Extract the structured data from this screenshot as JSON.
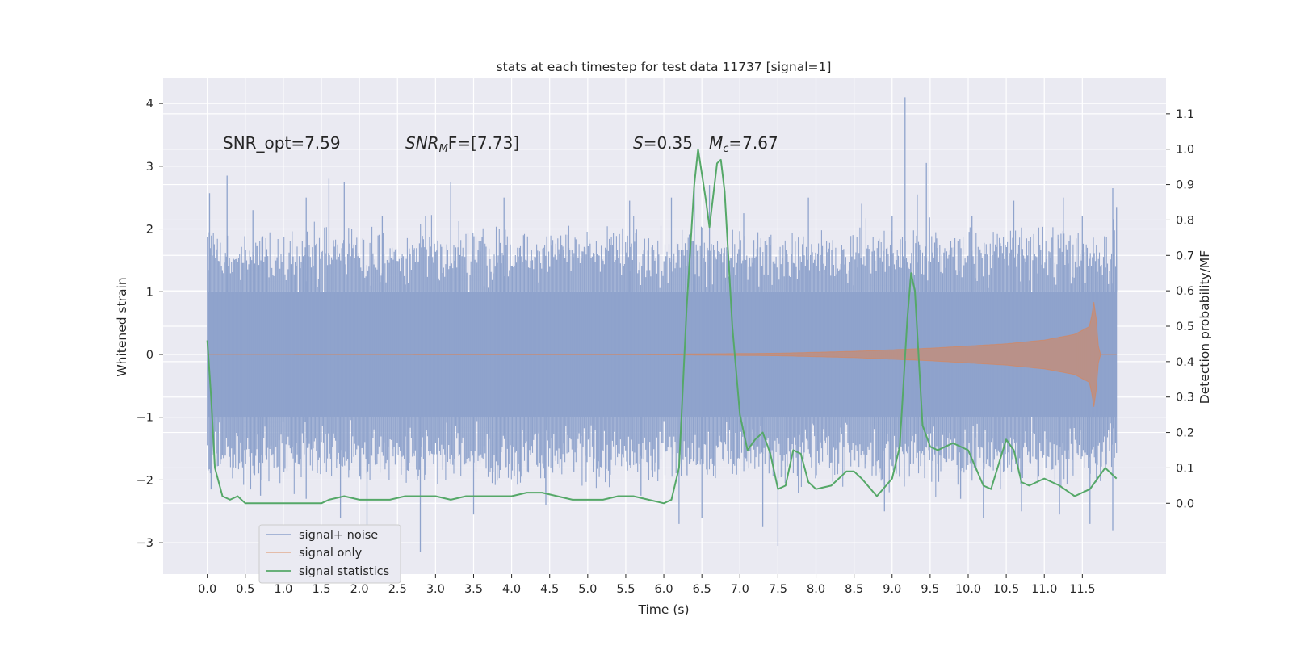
{
  "chart_data": {
    "type": "line",
    "title": "stats at each timestep for test data 11737 [signal=1]",
    "xlabel": "Time (s)",
    "ylabel": "Whitened strain",
    "ylabel_right": "Detection probability/MF",
    "xlim": [
      -0.58,
      12.6
    ],
    "ylim": [
      -3.5,
      4.4
    ],
    "ylim_right": [
      -0.2,
      1.2
    ],
    "grid": true,
    "x_ticks": [
      "0.0",
      "0.5",
      "1.0",
      "1.5",
      "2.0",
      "2.5",
      "3.0",
      "3.5",
      "4.0",
      "4.5",
      "5.0",
      "5.5",
      "6.0",
      "6.5",
      "7.0",
      "7.5",
      "8.0",
      "8.5",
      "9.0",
      "9.5",
      "10.0",
      "10.5",
      "11.0",
      "11.5"
    ],
    "y_ticks": [
      "−3",
      "−2",
      "−1",
      "0",
      "1",
      "2",
      "3",
      "4"
    ],
    "y_ticks_right": [
      "0.0",
      "0.1",
      "0.2",
      "0.3",
      "0.4",
      "0.5",
      "0.6",
      "0.7",
      "0.8",
      "0.9",
      "1.0",
      "1.1"
    ],
    "annotations": [
      {
        "text": "SNR_opt=7.59",
        "x": 0.2,
        "y": 3.35
      },
      {
        "text": "SNR_MF=[7.73]",
        "x": 2.6,
        "y": 3.35
      },
      {
        "text": "S=0.35   M_c=7.67",
        "x": 5.6,
        "y": 3.35
      }
    ],
    "annotation_parts": {
      "snr_opt": "SNR_opt=7.59",
      "snr_mf_main": "SNR",
      "snr_mf_sub": "M",
      "snr_mf_rest": "F=[7.73]",
      "s_main": "S",
      "s_rest": "=0.35",
      "mc_main": "M",
      "mc_sub": "c",
      "mc_rest": "=7.67"
    },
    "legend_position": "lower-left",
    "series": [
      {
        "name": "signal+ noise",
        "color": "#8fa3cc",
        "axis": "left",
        "x_range": [
          0.0,
          11.95
        ],
        "envelope": {
          "core": 1.0,
          "typical_upper": 1.6,
          "typical_lower": -1.6
        },
        "peaks": [
          [
            0.03,
            2.57
          ],
          [
            0.26,
            2.85
          ],
          [
            0.6,
            2.3
          ],
          [
            1.3,
            2.5
          ],
          [
            1.6,
            2.8
          ],
          [
            1.8,
            2.75
          ],
          [
            2.3,
            2.2
          ],
          [
            3.2,
            2.75
          ],
          [
            3.9,
            2.5
          ],
          [
            4.75,
            2.05
          ],
          [
            5.55,
            2.45
          ],
          [
            6.1,
            2.5
          ],
          [
            6.4,
            2.8
          ],
          [
            6.6,
            2.7
          ],
          [
            7.05,
            2.25
          ],
          [
            7.9,
            2.5
          ],
          [
            8.6,
            2.4
          ],
          [
            9.0,
            2.2
          ],
          [
            9.17,
            4.1
          ],
          [
            9.33,
            2.55
          ],
          [
            9.45,
            3.05
          ],
          [
            10.05,
            2.2
          ],
          [
            10.6,
            2.45
          ],
          [
            11.25,
            2.5
          ],
          [
            11.5,
            2.2
          ],
          [
            11.9,
            2.65
          ],
          [
            11.95,
            2.35
          ]
        ],
        "troughs": [
          [
            0.05,
            -2.15
          ],
          [
            0.7,
            -2.25
          ],
          [
            1.3,
            -2.3
          ],
          [
            1.75,
            -2.6
          ],
          [
            2.1,
            -2.75
          ],
          [
            2.8,
            -3.15
          ],
          [
            3.5,
            -2.55
          ],
          [
            4.45,
            -2.4
          ],
          [
            5.7,
            -2.25
          ],
          [
            6.2,
            -2.7
          ],
          [
            6.5,
            -2.6
          ],
          [
            7.3,
            -2.75
          ],
          [
            7.5,
            -3.05
          ],
          [
            8.9,
            -2.5
          ],
          [
            9.9,
            -2.3
          ],
          [
            10.2,
            -2.6
          ],
          [
            10.7,
            -2.5
          ],
          [
            11.2,
            -2.55
          ],
          [
            11.6,
            -2.7
          ],
          [
            11.9,
            -2.8
          ]
        ]
      },
      {
        "name": "signal only",
        "color": "#dd8452",
        "axis": "left",
        "x_range": [
          0.0,
          11.95
        ],
        "amplitude_envelope": [
          [
            0.0,
            0.0
          ],
          [
            6.0,
            0.005
          ],
          [
            7.5,
            0.02
          ],
          [
            8.5,
            0.05
          ],
          [
            9.5,
            0.1
          ],
          [
            10.5,
            0.17
          ],
          [
            11.0,
            0.23
          ],
          [
            11.4,
            0.32
          ],
          [
            11.6,
            0.45
          ],
          [
            11.66,
            0.9
          ],
          [
            11.72,
            0.0
          ],
          [
            11.95,
            0.0
          ]
        ]
      },
      {
        "name": "signal statistics",
        "color": "#55a868",
        "axis": "right",
        "x": [
          0.0,
          0.05,
          0.1,
          0.2,
          0.3,
          0.4,
          0.5,
          0.6,
          0.8,
          1.0,
          1.2,
          1.4,
          1.5,
          1.6,
          1.8,
          2.0,
          2.2,
          2.4,
          2.6,
          2.8,
          3.0,
          3.2,
          3.4,
          3.6,
          3.8,
          4.0,
          4.2,
          4.4,
          4.6,
          4.8,
          5.0,
          5.2,
          5.4,
          5.6,
          5.8,
          6.0,
          6.1,
          6.2,
          6.3,
          6.4,
          6.45,
          6.55,
          6.6,
          6.7,
          6.75,
          6.8,
          6.9,
          7.0,
          7.1,
          7.2,
          7.3,
          7.4,
          7.5,
          7.6,
          7.7,
          7.8,
          7.9,
          8.0,
          8.2,
          8.4,
          8.5,
          8.6,
          8.8,
          9.0,
          9.1,
          9.2,
          9.25,
          9.3,
          9.4,
          9.5,
          9.6,
          9.8,
          10.0,
          10.2,
          10.3,
          10.5,
          10.6,
          10.7,
          10.8,
          11.0,
          11.2,
          11.4,
          11.6,
          11.8,
          11.95
        ],
        "y": [
          0.46,
          0.3,
          0.1,
          0.02,
          0.01,
          0.02,
          0.0,
          0.0,
          0.0,
          0.0,
          0.0,
          0.0,
          0.0,
          0.01,
          0.02,
          0.01,
          0.01,
          0.01,
          0.02,
          0.02,
          0.02,
          0.01,
          0.02,
          0.02,
          0.02,
          0.02,
          0.03,
          0.03,
          0.02,
          0.01,
          0.01,
          0.01,
          0.02,
          0.02,
          0.01,
          0.0,
          0.01,
          0.1,
          0.55,
          0.9,
          1.0,
          0.86,
          0.78,
          0.96,
          0.97,
          0.88,
          0.5,
          0.25,
          0.15,
          0.18,
          0.2,
          0.14,
          0.04,
          0.05,
          0.15,
          0.14,
          0.06,
          0.04,
          0.05,
          0.09,
          0.09,
          0.07,
          0.02,
          0.07,
          0.16,
          0.52,
          0.65,
          0.6,
          0.22,
          0.16,
          0.15,
          0.17,
          0.15,
          0.05,
          0.04,
          0.18,
          0.15,
          0.06,
          0.05,
          0.07,
          0.05,
          0.02,
          0.04,
          0.1,
          0.07
        ]
      }
    ]
  }
}
